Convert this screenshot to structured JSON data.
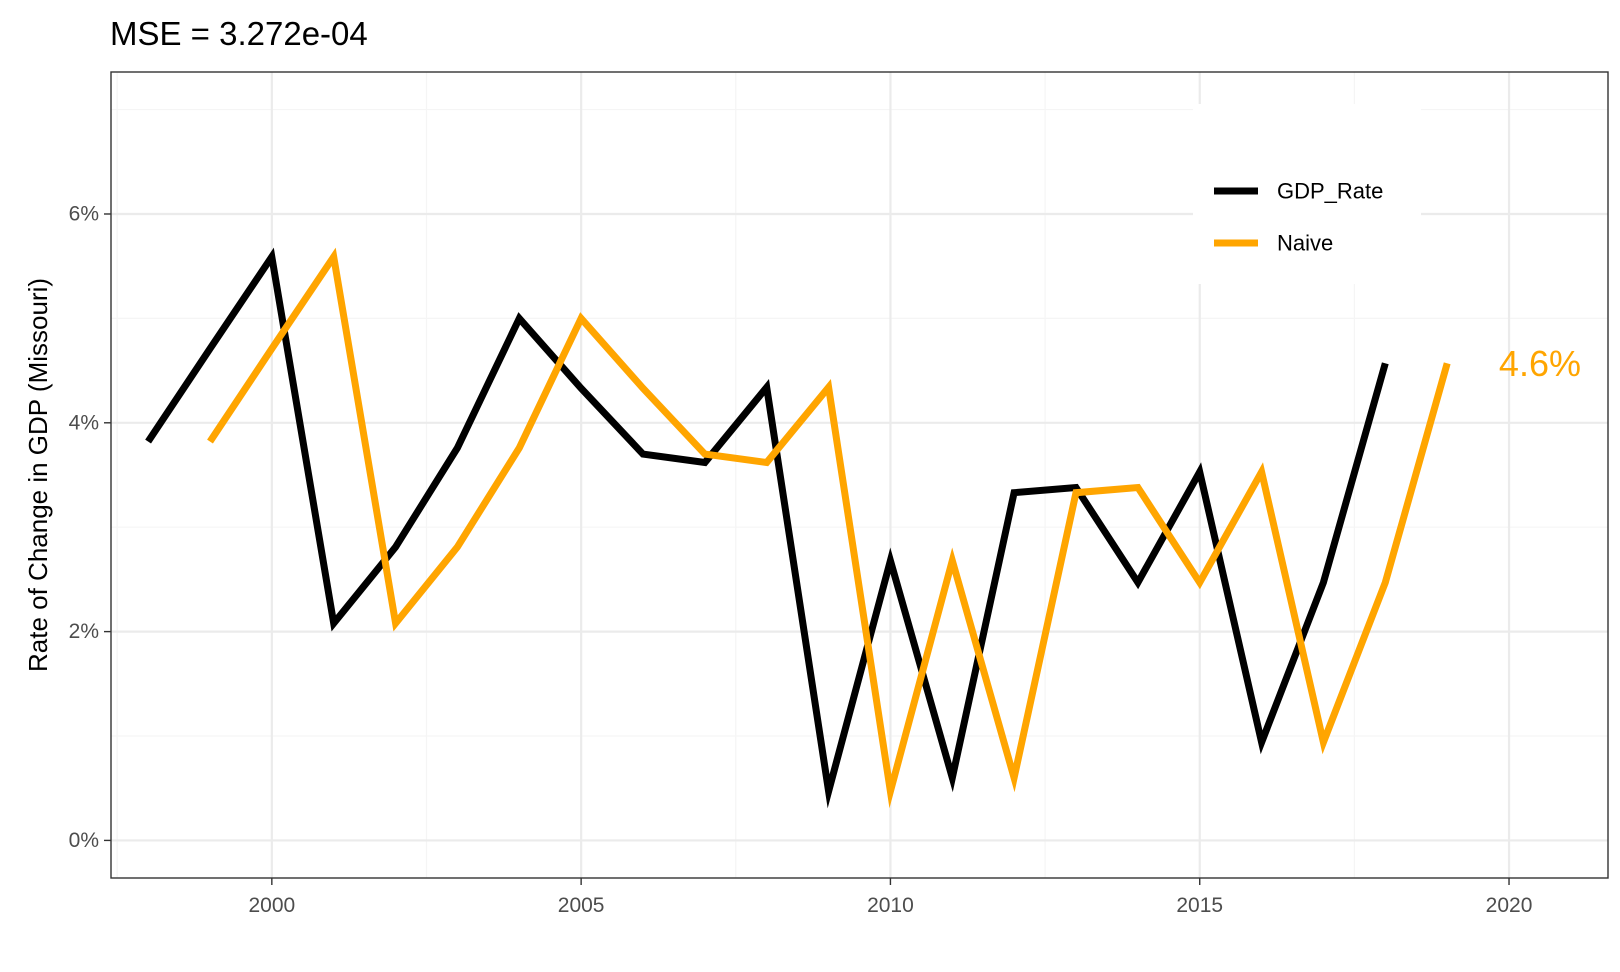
{
  "chart_data": {
    "type": "line",
    "title": "MSE =  3.272e-04",
    "xlabel": "",
    "ylabel": "Rate of Change in GDP (Missouri)",
    "xlim": [
      1997.4,
      2021.6
    ],
    "ylim": [
      -0.0036,
      0.0736
    ],
    "x_ticks": [
      2000,
      2005,
      2010,
      2015,
      2020
    ],
    "y_ticks": [
      0,
      0.02,
      0.04,
      0.06
    ],
    "y_tick_labels": [
      "0%",
      "2%",
      "4%",
      "6%"
    ],
    "grid": true,
    "legend_position": "top-right",
    "series": [
      {
        "name": "GDP_Rate",
        "color": "#000000",
        "x": [
          1998,
          1999,
          2000,
          2001,
          2002,
          2003,
          2004,
          2005,
          2006,
          2007,
          2008,
          2009,
          2010,
          2011,
          2012,
          2013,
          2014,
          2015,
          2016,
          2017,
          2018
        ],
        "y": [
          0.0382,
          0.0471,
          0.0559,
          0.0208,
          0.0281,
          0.0376,
          0.05,
          0.0433,
          0.037,
          0.0362,
          0.0434,
          0.0047,
          0.0268,
          0.006,
          0.0333,
          0.0338,
          0.0247,
          0.0353,
          0.0094,
          0.0247,
          0.0457
        ]
      },
      {
        "name": "Naive",
        "color": "#FFA500",
        "x": [
          1999,
          2000,
          2001,
          2002,
          2003,
          2004,
          2005,
          2006,
          2007,
          2008,
          2009,
          2010,
          2011,
          2012,
          2013,
          2014,
          2015,
          2016,
          2017,
          2018,
          2019
        ],
        "y": [
          0.0382,
          0.0471,
          0.0559,
          0.0208,
          0.0281,
          0.0376,
          0.05,
          0.0433,
          0.037,
          0.0362,
          0.0434,
          0.0047,
          0.0268,
          0.006,
          0.0333,
          0.0338,
          0.0247,
          0.0353,
          0.0094,
          0.0247,
          0.0457
        ]
      }
    ],
    "annotation": {
      "text": "4.6%",
      "x": 2020.5,
      "y": 0.0457,
      "color": "#FFA500"
    }
  },
  "colors": {
    "panel_border": "#333333",
    "grid_major": "#ebebeb",
    "grid_minor": "#f5f5f5"
  }
}
